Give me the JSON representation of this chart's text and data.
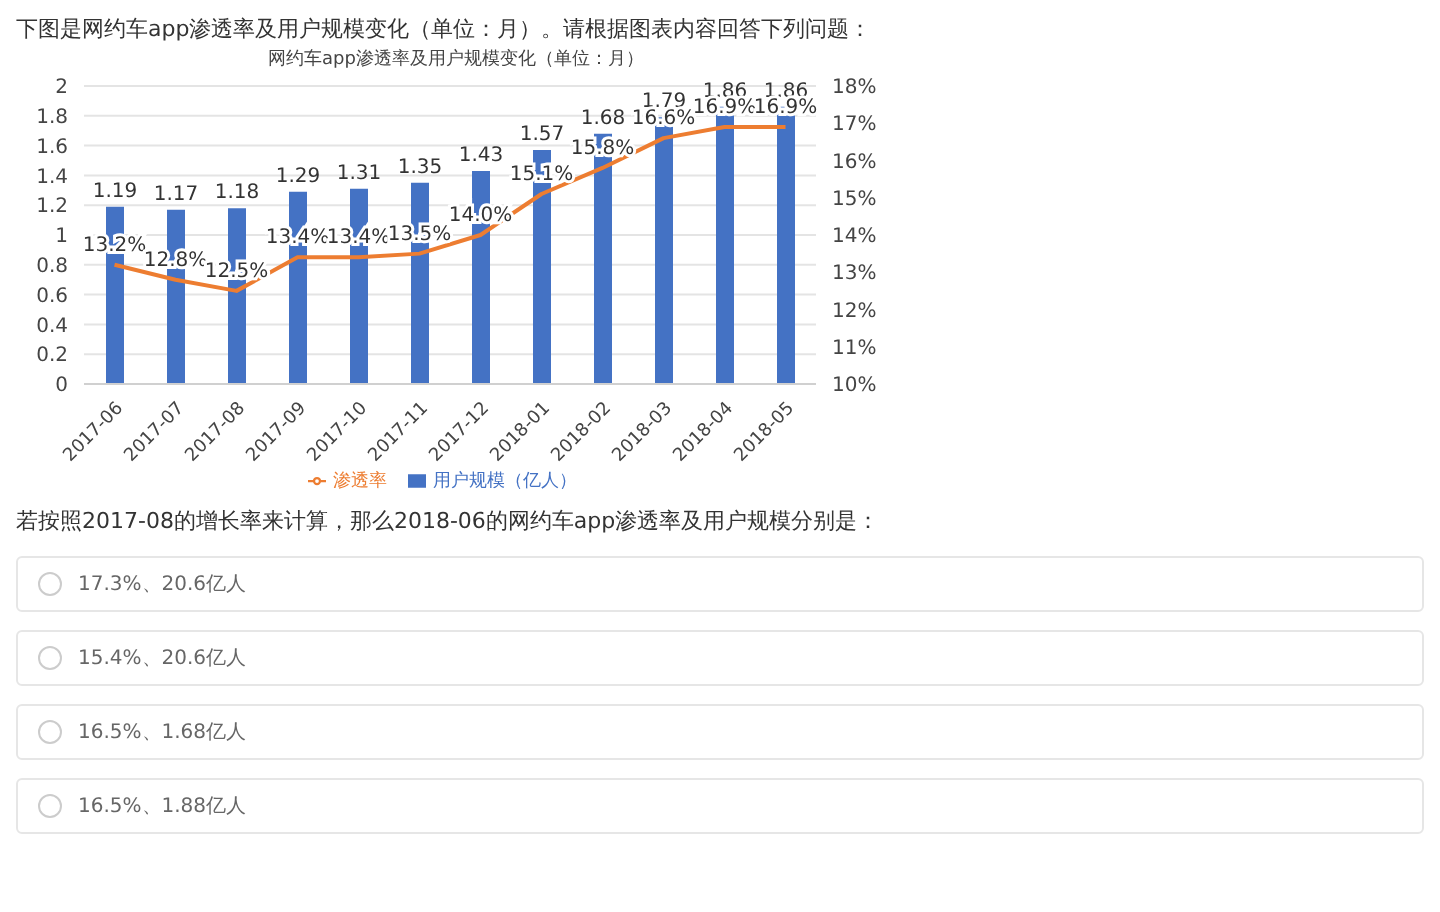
{
  "chart_data": {
    "type": "bar",
    "title": "网约车app渗透率及用户规模变化（单位：月）",
    "categories": [
      "2017-06",
      "2017-07",
      "2017-08",
      "2017-09",
      "2017-10",
      "2017-11",
      "2017-12",
      "2018-01",
      "2018-02",
      "2018-03",
      "2018-04",
      "2018-05"
    ],
    "series": [
      {
        "name": "用户规模（亿人）",
        "color": "#4472c4",
        "values": [
          1.19,
          1.17,
          1.18,
          1.29,
          1.31,
          1.35,
          1.43,
          1.57,
          1.68,
          1.79,
          1.86,
          1.86
        ],
        "value_labels": [
          "1.19",
          "1.17",
          "1.18",
          "1.29",
          "1.31",
          "1.35",
          "1.43",
          "1.57",
          "1.68",
          "1.79",
          "1.86",
          "1.86"
        ]
      },
      {
        "name": "渗透率",
        "type": "line",
        "axis": "y2",
        "color": "#ed7d31",
        "values": [
          13.2,
          12.8,
          12.5,
          13.4,
          13.4,
          13.5,
          14.0,
          15.1,
          15.8,
          16.6,
          16.9,
          16.9
        ],
        "value_labels": [
          "13.2%",
          "12.8%",
          "12.5%",
          "13.4%",
          "13.4%",
          "13.5%",
          "14.0%",
          "15.1%",
          "15.8%",
          "16.6%",
          "16.9%",
          "16.9%"
        ]
      }
    ],
    "ylim": [
      0,
      2
    ],
    "yticks": [
      0,
      0.2,
      0.4,
      0.6,
      0.8,
      1,
      1.2,
      1.4,
      1.6,
      1.8,
      2
    ],
    "y2lim": [
      10,
      18
    ],
    "y2ticks": [
      {
        "value": 10,
        "label": "10%"
      },
      {
        "value": 11,
        "label": "11%"
      },
      {
        "value": 12,
        "label": "12%"
      },
      {
        "value": 13,
        "label": "13%"
      },
      {
        "value": 14,
        "label": "14%"
      },
      {
        "value": 15,
        "label": "15%"
      },
      {
        "value": 16,
        "label": "16%"
      },
      {
        "value": 17,
        "label": "17%"
      },
      {
        "value": 18,
        "label": "18%"
      }
    ],
    "grid": "y",
    "legend": "bottom",
    "marker": "none",
    "annotations": [
      "下图是网约车app渗透率及用户规模变化（单位：月）。请根据图表内容回答下列问题：",
      "若按照2017-08的增长率来计算，那么2018-06的网约车app渗透率及用户规模分别是：",
      "17.3%、20.6亿人",
      "15.4%、20.6亿人",
      "16.5%、1.68亿人",
      "16.5%、1.88亿人"
    ]
  }
}
